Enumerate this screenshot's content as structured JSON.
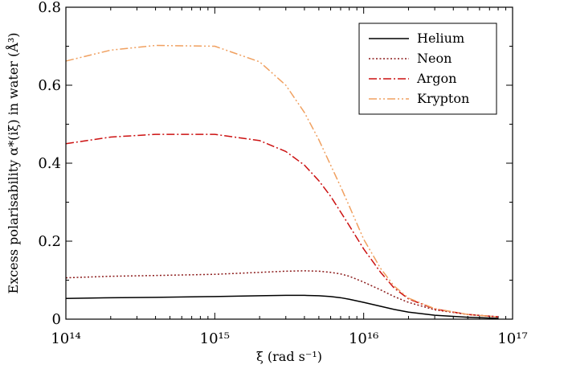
{
  "chart_data": {
    "type": "line",
    "xlabel": "ξ (rad s⁻¹)",
    "ylabel": "Excess polarisability α*(iξ) in water (Å³)",
    "x_scale": "log",
    "xlim": [
      100000000000000.0,
      1e+17
    ],
    "ylim": [
      0,
      0.8
    ],
    "x_tick_labels": [
      "10¹⁴",
      "10¹⁵",
      "10¹⁶",
      "10¹⁷"
    ],
    "y_tick_labels": [
      "0",
      "0.2",
      "0.4",
      "0.6",
      "0.8"
    ],
    "legend_position": "top-right",
    "grid": false,
    "x": [
      100000000000000.0,
      200000000000000.0,
      400000000000000.0,
      1000000000000000.0,
      2000000000000000.0,
      3000000000000000.0,
      4000000000000000.0,
      5000000000000000.0,
      6000000000000000.0,
      7000000000000000.0,
      8000000000000000.0,
      1e+16,
      1.3e+16,
      1.6e+16,
      2e+16,
      3e+16,
      5e+16,
      8e+16
    ],
    "series": [
      {
        "name": "Helium",
        "color": "#000000",
        "dash": "solid",
        "values": [
          0.053,
          0.055,
          0.056,
          0.058,
          0.06,
          0.061,
          0.061,
          0.06,
          0.058,
          0.055,
          0.051,
          0.043,
          0.033,
          0.025,
          0.018,
          0.01,
          0.005,
          0.002
        ]
      },
      {
        "name": "Neon",
        "color": "#8b1a1a",
        "dash": "dotted",
        "values": [
          0.106,
          0.11,
          0.112,
          0.115,
          0.12,
          0.123,
          0.124,
          0.123,
          0.12,
          0.116,
          0.11,
          0.095,
          0.075,
          0.058,
          0.043,
          0.024,
          0.012,
          0.006
        ]
      },
      {
        "name": "Argon",
        "color": "#cc1111",
        "dash": "dashdot",
        "values": [
          0.45,
          0.467,
          0.474,
          0.474,
          0.458,
          0.43,
          0.395,
          0.355,
          0.315,
          0.275,
          0.24,
          0.18,
          0.12,
          0.08,
          0.052,
          0.026,
          0.012,
          0.006
        ]
      },
      {
        "name": "Krypton",
        "color": "#f0a060",
        "dash": "dashdotdot",
        "values": [
          0.662,
          0.69,
          0.702,
          0.7,
          0.66,
          0.6,
          0.53,
          0.46,
          0.395,
          0.34,
          0.29,
          0.205,
          0.13,
          0.085,
          0.054,
          0.027,
          0.012,
          0.006
        ]
      }
    ]
  }
}
